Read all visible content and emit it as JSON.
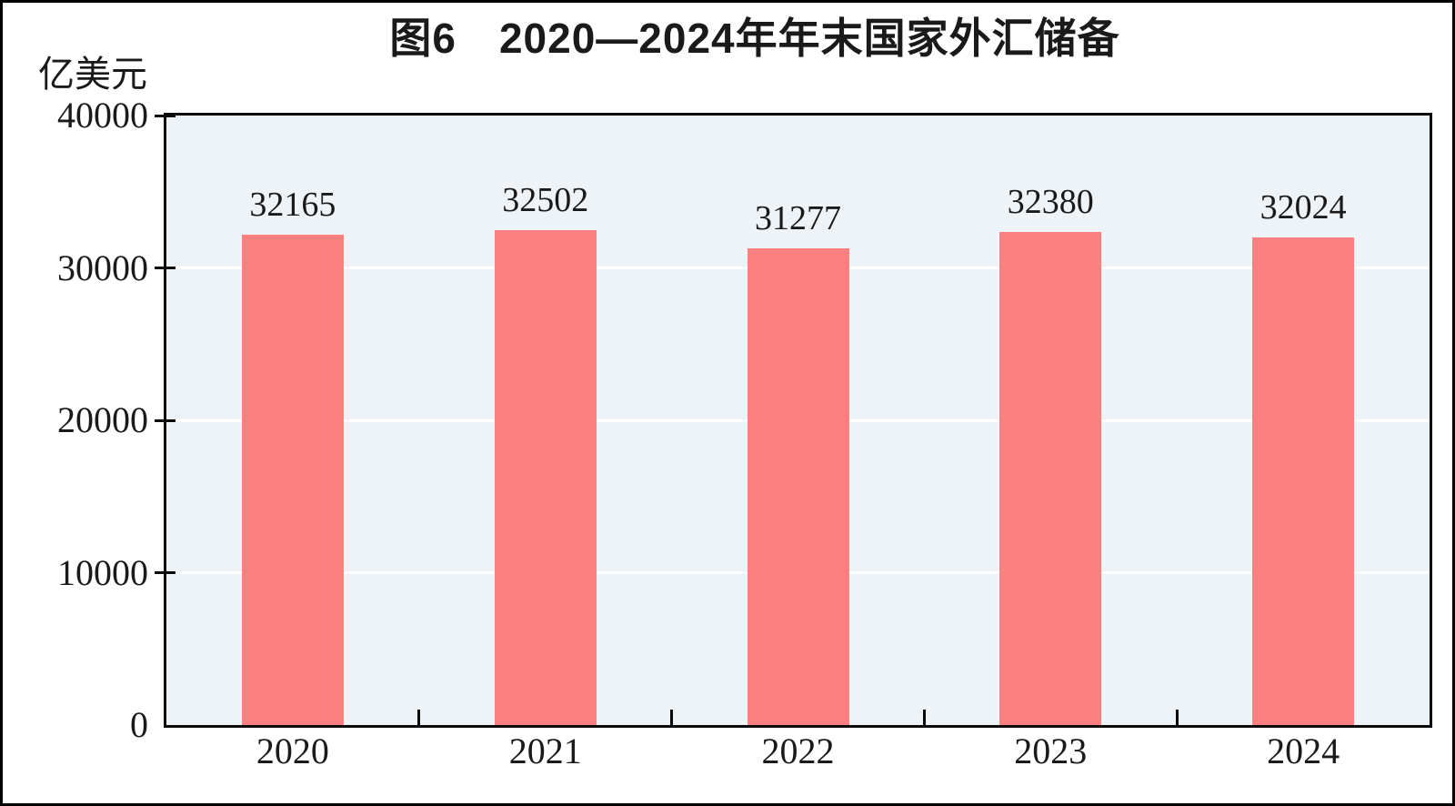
{
  "page": {
    "background": "#ffffff",
    "frame_color": "#000000"
  },
  "chart": {
    "title": "图6　2020—2024年年末国家外汇储备",
    "unit_label": "亿美元"
  },
  "chart_data": {
    "type": "bar",
    "title": "图6　2020—2024年年末国家外汇储备",
    "unit": "亿美元",
    "categories": [
      "2020",
      "2021",
      "2022",
      "2023",
      "2024"
    ],
    "values": [
      32165,
      32502,
      31277,
      32380,
      32024
    ],
    "value_labels_shown": true,
    "xlabel": "",
    "ylabel": "亿美元",
    "ylim": [
      0,
      40000
    ],
    "yticks": [
      0,
      10000,
      20000,
      30000,
      40000
    ],
    "gridline_values": [
      10000,
      20000,
      30000
    ],
    "grid": "horizontal",
    "legend": "none",
    "colors": {
      "bar": "#fd8080",
      "plot_background": "#edf3f7",
      "gridline": "#ffffff",
      "axis": "#0a0a0a",
      "text": "#1a1a1a"
    }
  }
}
